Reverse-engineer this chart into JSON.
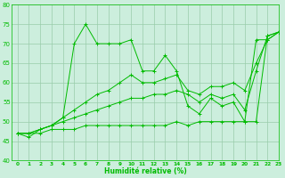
{
  "xlabel": "Humidité relative (%)",
  "ylabel": "",
  "bg_color": "#cceedd",
  "grid_color": "#99ccaa",
  "line_color": "#00bb00",
  "xlim": [
    -0.5,
    23
  ],
  "ylim": [
    40,
    80
  ],
  "yticks": [
    40,
    45,
    50,
    55,
    60,
    65,
    70,
    75,
    80
  ],
  "xticks": [
    0,
    1,
    2,
    3,
    4,
    5,
    6,
    7,
    8,
    9,
    10,
    11,
    12,
    13,
    14,
    15,
    16,
    17,
    18,
    19,
    20,
    21,
    22,
    23
  ],
  "series": [
    [
      47,
      46,
      48,
      49,
      51,
      70,
      75,
      70,
      70,
      70,
      71,
      63,
      63,
      67,
      63,
      54,
      52,
      56,
      54,
      55,
      50,
      71,
      71,
      73
    ],
    [
      47,
      47,
      48,
      49,
      51,
      53,
      55,
      57,
      58,
      60,
      62,
      60,
      60,
      61,
      62,
      58,
      57,
      59,
      59,
      60,
      58,
      65,
      71,
      73
    ],
    [
      47,
      47,
      48,
      49,
      50,
      51,
      52,
      53,
      54,
      55,
      56,
      56,
      57,
      57,
      58,
      57,
      55,
      57,
      56,
      57,
      53,
      63,
      72,
      73
    ],
    [
      47,
      47,
      47,
      48,
      48,
      48,
      49,
      49,
      49,
      49,
      49,
      49,
      49,
      49,
      50,
      49,
      50,
      50,
      50,
      50,
      50,
      50,
      72,
      73
    ]
  ]
}
